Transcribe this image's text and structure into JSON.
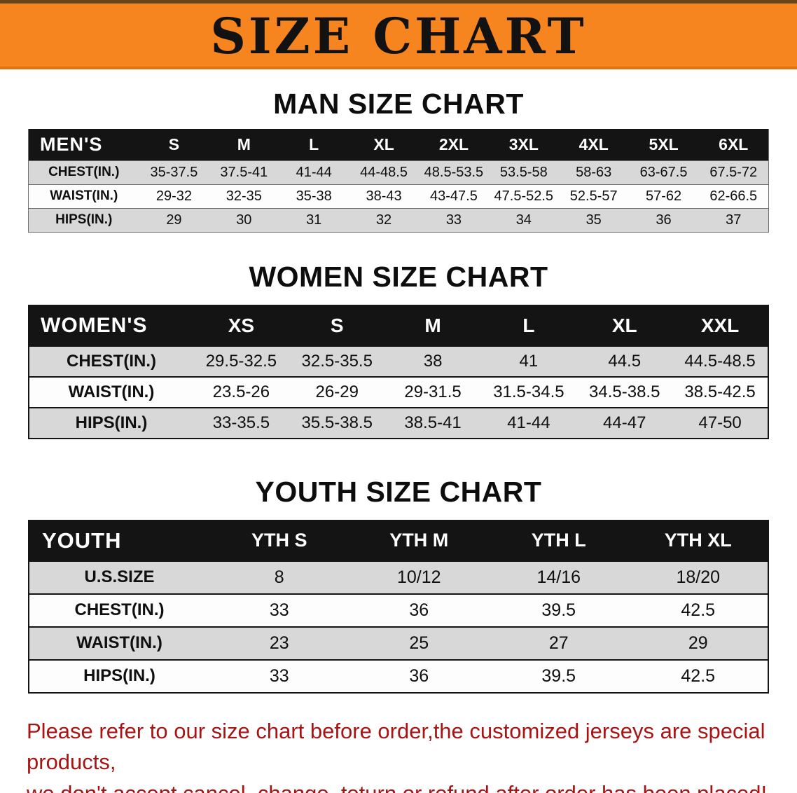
{
  "banner": {
    "title": "SIZE CHART"
  },
  "sections": [
    {
      "heading": "MAN SIZE CHART",
      "table": {
        "header": [
          "MEN'S",
          "S",
          "M",
          "L",
          "XL",
          "2XL",
          "3XL",
          "4XL",
          "5XL",
          "6XL"
        ],
        "rows": [
          [
            "CHEST(IN.)",
            "35-37.5",
            "37.5-41",
            "41-44",
            "44-48.5",
            "48.5-53.5",
            "53.5-58",
            "58-63",
            "63-67.5",
            "67.5-72"
          ],
          [
            "WAIST(IN.)",
            "29-32",
            "32-35",
            "35-38",
            "38-43",
            "43-47.5",
            "47.5-52.5",
            "52.5-57",
            "57-62",
            "62-66.5"
          ],
          [
            "HIPS(IN.)",
            "29",
            "30",
            "31",
            "32",
            "33",
            "34",
            "35",
            "36",
            "37"
          ]
        ]
      }
    },
    {
      "heading": "WOMEN SIZE CHART",
      "table": {
        "header": [
          "WOMEN'S",
          "XS",
          "S",
          "M",
          "L",
          "XL",
          "XXL"
        ],
        "rows": [
          [
            "CHEST(IN.)",
            "29.5-32.5",
            "32.5-35.5",
            "38",
            "41",
            "44.5",
            "44.5-48.5"
          ],
          [
            "WAIST(IN.)",
            "23.5-26",
            "26-29",
            "29-31.5",
            "31.5-34.5",
            "34.5-38.5",
            "38.5-42.5"
          ],
          [
            "HIPS(IN.)",
            "33-35.5",
            "35.5-38.5",
            "38.5-41",
            "41-44",
            "44-47",
            "47-50"
          ]
        ]
      }
    },
    {
      "heading": "YOUTH SIZE CHART",
      "table": {
        "header": [
          "YOUTH",
          "YTH S",
          "YTH M",
          "YTH L",
          "YTH XL"
        ],
        "rows": [
          [
            "U.S.SIZE",
            "8",
            "10/12",
            "14/16",
            "18/20"
          ],
          [
            "CHEST(IN.)",
            "33",
            "36",
            "39.5",
            "42.5"
          ],
          [
            "WAIST(IN.)",
            "23",
            "25",
            "27",
            "29"
          ],
          [
            "HIPS(IN.)",
            "33",
            "36",
            "39.5",
            "42.5"
          ]
        ]
      }
    }
  ],
  "footer": {
    "line1": "Please refer to our size chart before order,the customized jerseys are special products,",
    "line2": "we don't accept cancel, change, teturn or refund after order has been placed!"
  },
  "colors": {
    "banner_bg": "#f6851f",
    "table_header_bg": "#141414",
    "row_alt": "#d8d8d8",
    "notice_text": "#a81414"
  }
}
